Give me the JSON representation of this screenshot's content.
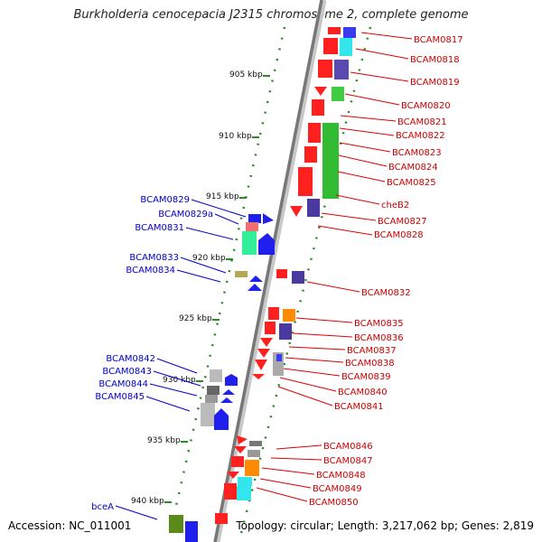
{
  "title": "Burkholderia cenocepacia J2315 chromosome 2, complete genome",
  "footer": {
    "accession": "Accession: NC_011001",
    "topology": "Topology: circular; Length: 3,217,062 bp; Genes: 2,819"
  },
  "scale_ticks": [
    "905 kbp",
    "910 kbp",
    "915 kbp",
    "920 kbp",
    "925 kbp",
    "930 kbp",
    "935 kbp",
    "940 kbp"
  ],
  "right_labels": [
    "BCAM0817",
    "BCAM0818",
    "BCAM0819",
    "BCAM0820",
    "BCAM0821",
    "BCAM0822",
    "BCAM0823",
    "BCAM0824",
    "BCAM0825",
    "cheB2",
    "BCAM0827",
    "BCAM0828",
    "BCAM0832",
    "BCAM0835",
    "BCAM0836",
    "BCAM0837",
    "BCAM0838",
    "BCAM0839",
    "BCAM0840",
    "BCAM0841",
    "BCAM0846",
    "BCAM0847",
    "BCAM0848",
    "BCAM0849",
    "BCAM0850"
  ],
  "left_labels": [
    "BCAM0829",
    "BCAM0829a",
    "BCAM0831",
    "BCAM0833",
    "BCAM0834",
    "BCAM0842",
    "BCAM0843",
    "BCAM0844",
    "BCAM0845",
    "bceA"
  ],
  "colors": {
    "forward_strand_label": "#0000cc",
    "reverse_strand_label": "#cc0000",
    "backbone": "#8a8a8a",
    "tick_dots": "#2a8a2a"
  }
}
